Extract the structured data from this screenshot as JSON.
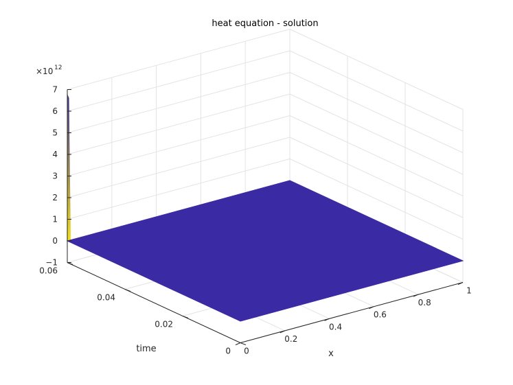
{
  "chart_data": {
    "type": "surface",
    "title": "heat equation - solution",
    "xlabel": "x",
    "ylabel": "time",
    "zlabel": "",
    "z_exponent_base": "×10",
    "z_exponent": "12",
    "xlim": [
      0,
      1
    ],
    "ylim": [
      0,
      0.06
    ],
    "zlim": [
      -1,
      7
    ],
    "x_ticks": [
      "0",
      "0.2",
      "0.4",
      "0.6",
      "0.8",
      "1"
    ],
    "x_tick_values": [
      0,
      0.2,
      0.4,
      0.6,
      0.8,
      1
    ],
    "y_ticks": [
      "0",
      "0.02",
      "0.04",
      "0.06"
    ],
    "y_tick_values": [
      0,
      0.02,
      0.04,
      0.06
    ],
    "z_ticks": [
      "−1",
      "0",
      "1",
      "2",
      "3",
      "4",
      "5",
      "6",
      "7"
    ],
    "z_tick_values": [
      -1,
      0,
      1,
      2,
      3,
      4,
      5,
      6,
      7
    ],
    "surface_value": 0,
    "spike": {
      "x": 0,
      "time": 0.06,
      "peak": 6.8
    },
    "grid": true,
    "colors": {
      "surface": "#3a2aa3",
      "spike_low": "#f2e21c",
      "spike_high": "#3a2aa3",
      "grid": "#e3e3e3",
      "axis": "#262626"
    }
  }
}
